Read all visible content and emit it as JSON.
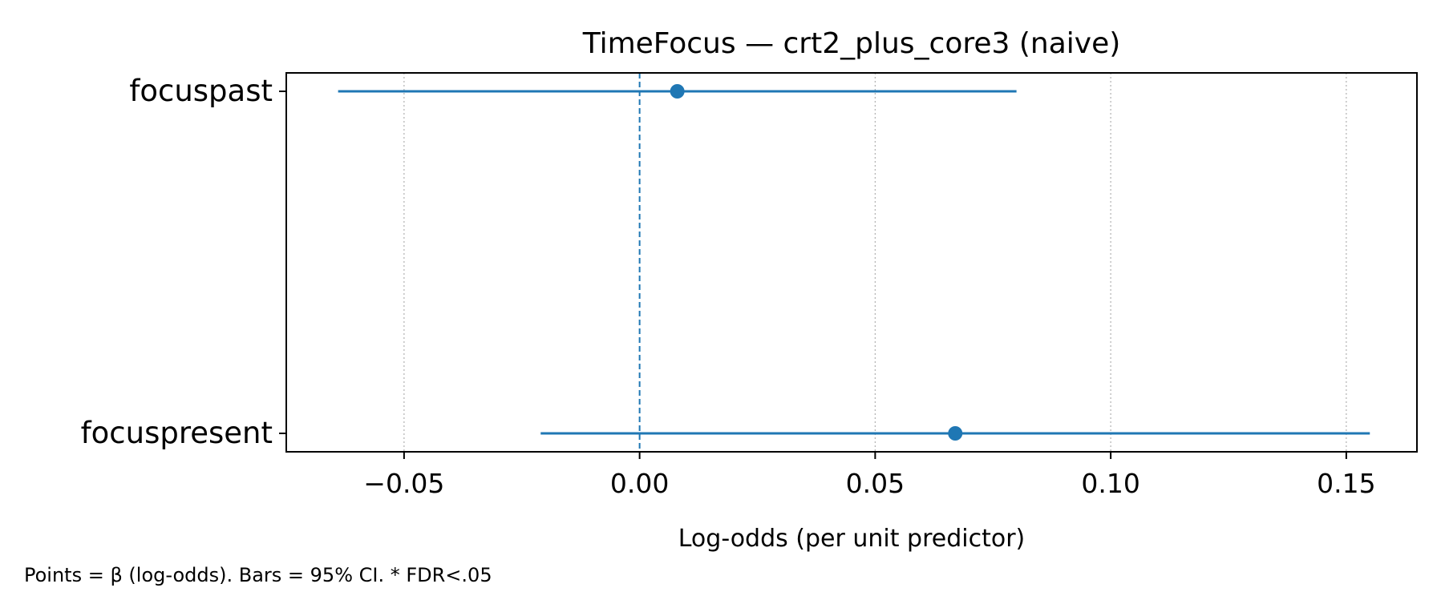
{
  "chart_data": {
    "type": "scatter",
    "title": "TimeFocus — crt2_plus_core3 (naive)",
    "xlabel": "Log-odds (per unit predictor)",
    "ylabel": "",
    "xlim": [
      -0.075,
      0.165
    ],
    "xticks": [
      -0.05,
      0.0,
      0.05,
      0.1,
      0.15
    ],
    "xtick_labels": [
      "−0.05",
      "0.00",
      "0.05",
      "0.10",
      "0.15"
    ],
    "categories": [
      "focuspast",
      "focuspresent"
    ],
    "points": [
      {
        "label": "focuspast",
        "beta": 0.008,
        "ci_low": -0.064,
        "ci_high": 0.08
      },
      {
        "label": "focuspresent",
        "beta": 0.067,
        "ci_low": -0.021,
        "ci_high": 0.155
      }
    ],
    "reference_line": 0.0,
    "grid": "vertical dotted",
    "color": "#1f77b4",
    "footnote": "Points = β (log-odds). Bars = 95% CI. * FDR<.05"
  }
}
